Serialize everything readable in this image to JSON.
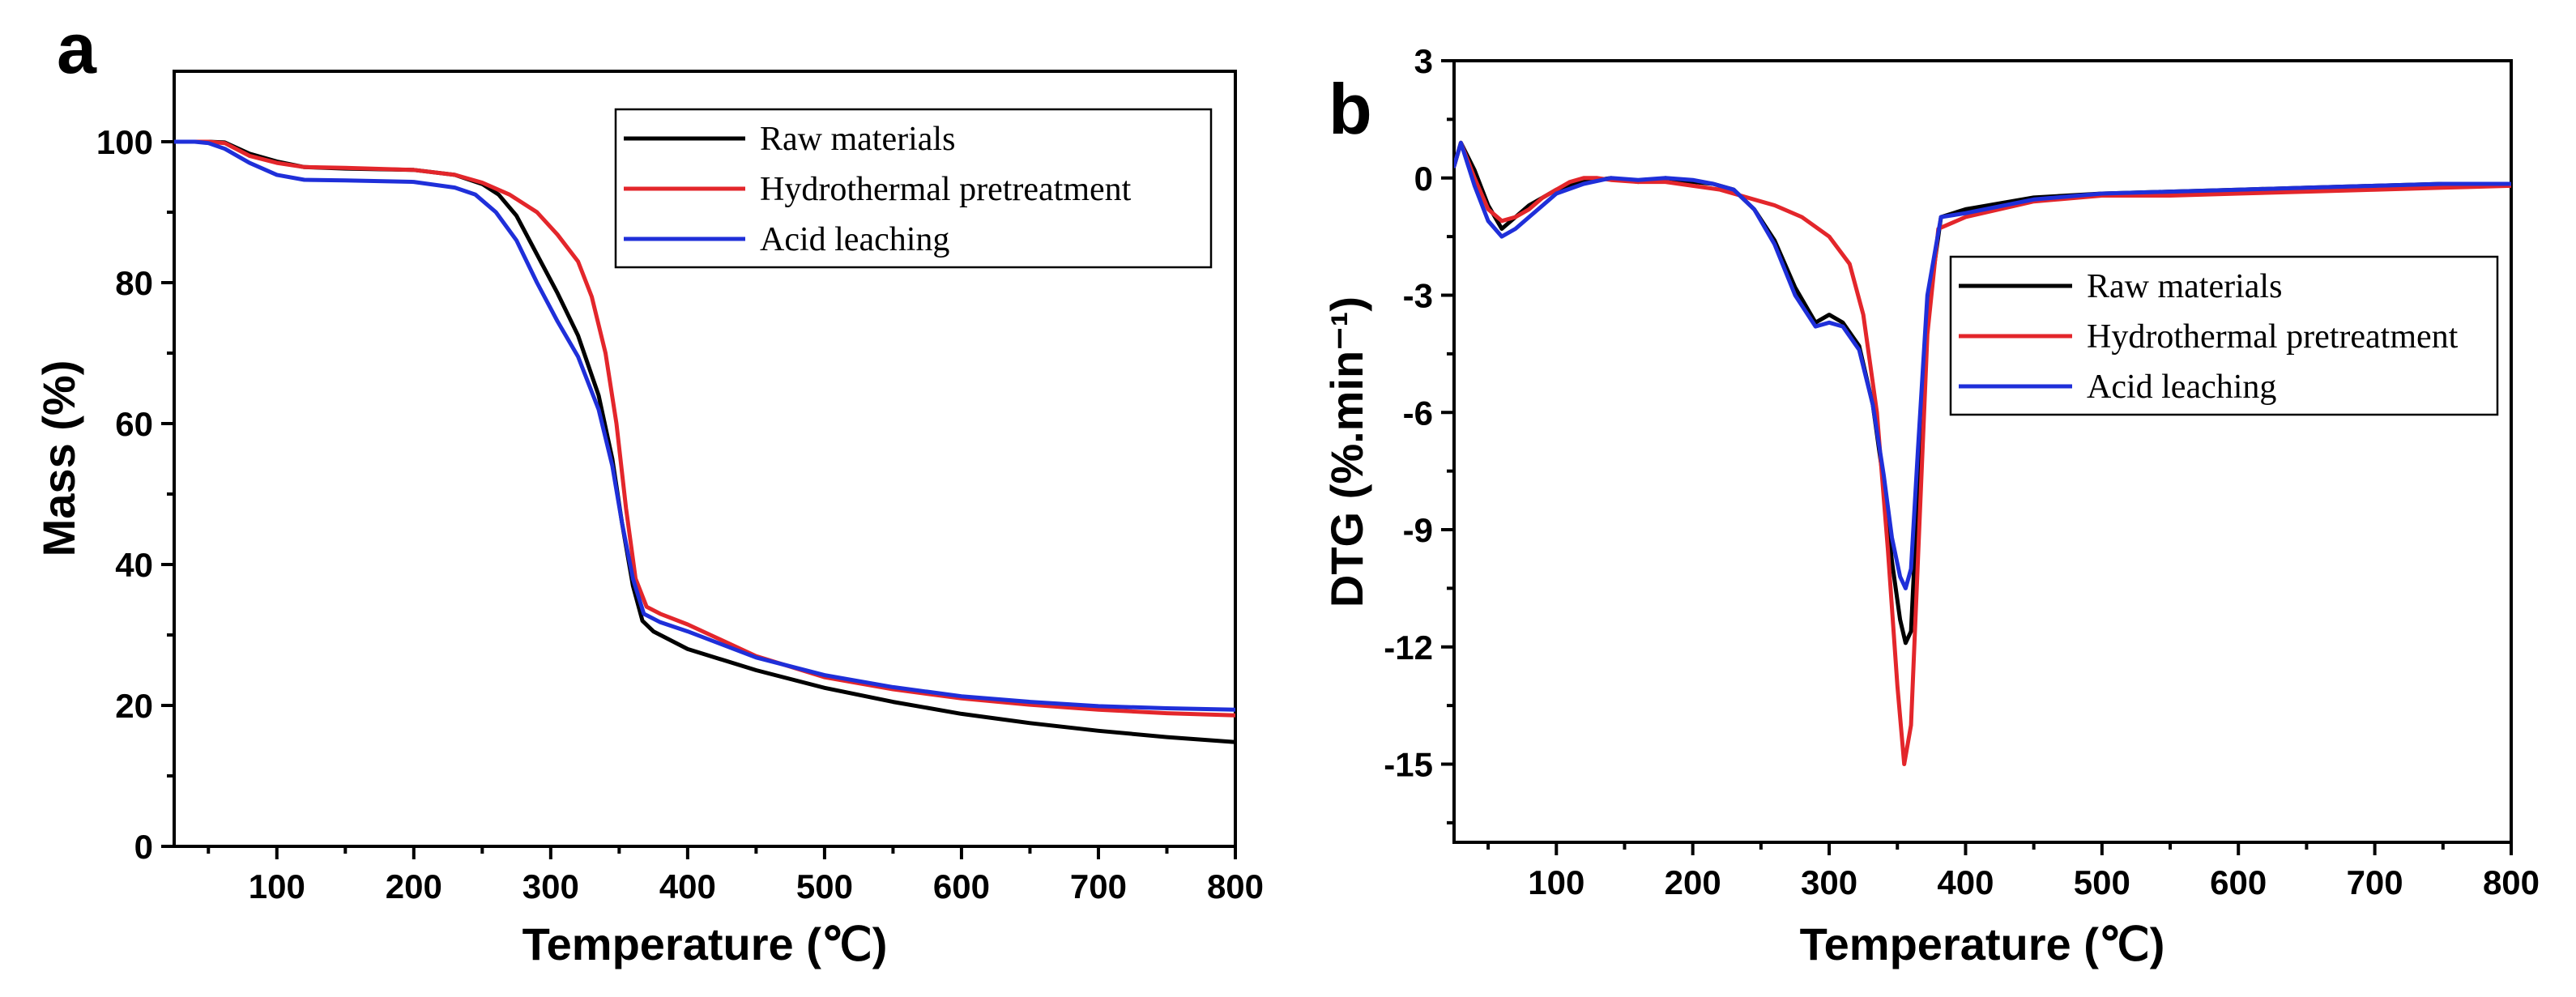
{
  "chart_data": [
    {
      "type": "line",
      "panel": "a",
      "title": "",
      "xlabel": "Temperature (℃)",
      "ylabel": "Mass (%)",
      "xlim": [
        25,
        800
      ],
      "ylim": [
        0,
        110
      ],
      "xticks": [
        100,
        200,
        300,
        400,
        500,
        600,
        700,
        800
      ],
      "yticks": [
        0,
        20,
        40,
        60,
        80,
        100
      ],
      "legend_position": "top-right",
      "series": [
        {
          "name": "Raw materials",
          "color": "#000000",
          "x": [
            25,
            50,
            62,
            80,
            100,
            120,
            150,
            200,
            230,
            250,
            262,
            275,
            290,
            305,
            320,
            335,
            345,
            352,
            360,
            367,
            375,
            400,
            450,
            500,
            550,
            600,
            650,
            700,
            750,
            800
          ],
          "y": [
            100,
            100,
            99.9,
            98.3,
            97.2,
            96.4,
            96.2,
            96.0,
            95.3,
            94.0,
            92.5,
            89.5,
            84.0,
            78.5,
            72.5,
            64.0,
            55.0,
            46.0,
            37.0,
            32.0,
            30.5,
            28.0,
            25.0,
            22.5,
            20.5,
            18.8,
            17.5,
            16.4,
            15.5,
            14.8
          ]
        },
        {
          "name": "Hydrothermal pretreatment",
          "color": "#e3262b",
          "x": [
            25,
            50,
            62,
            80,
            100,
            120,
            150,
            200,
            230,
            250,
            270,
            290,
            305,
            320,
            330,
            340,
            348,
            355,
            362,
            370,
            380,
            400,
            450,
            500,
            550,
            600,
            650,
            700,
            750,
            800
          ],
          "y": [
            100,
            100,
            99.8,
            98.0,
            97.0,
            96.4,
            96.3,
            96.0,
            95.3,
            94.2,
            92.5,
            90.0,
            86.8,
            83.0,
            78.0,
            70.0,
            60.0,
            48.0,
            38.0,
            34.0,
            33.0,
            31.5,
            27.0,
            24.0,
            22.3,
            21.0,
            20.1,
            19.4,
            18.9,
            18.6
          ]
        },
        {
          "name": "Acid leaching",
          "color": "#1f2fd9",
          "x": [
            25,
            40,
            50,
            62,
            80,
            100,
            120,
            150,
            200,
            230,
            245,
            260,
            275,
            290,
            305,
            320,
            335,
            345,
            352,
            360,
            368,
            380,
            400,
            450,
            500,
            550,
            600,
            650,
            700,
            750,
            800
          ],
          "y": [
            100,
            100,
            99.8,
            99.0,
            97.0,
            95.3,
            94.6,
            94.5,
            94.3,
            93.5,
            92.5,
            90.0,
            86.0,
            80.0,
            74.5,
            69.5,
            62.0,
            54.0,
            46.0,
            38.0,
            33.0,
            31.8,
            30.5,
            26.8,
            24.3,
            22.6,
            21.3,
            20.5,
            19.9,
            19.6,
            19.4
          ]
        }
      ]
    },
    {
      "type": "line",
      "panel": "b",
      "title": "",
      "xlabel": "Temperature (℃)",
      "ylabel": "DTG (%.min⁻¹)",
      "xlim": [
        25,
        800
      ],
      "ylim": [
        -17,
        3
      ],
      "xticks": [
        100,
        200,
        300,
        400,
        500,
        600,
        700,
        800
      ],
      "yticks": [
        3,
        0,
        -3,
        -6,
        -9,
        -12,
        -15
      ],
      "legend_position": "center-right",
      "series": [
        {
          "name": "Raw materials",
          "color": "#000000",
          "x": [
            25,
            30,
            40,
            50,
            60,
            70,
            80,
            90,
            100,
            120,
            140,
            160,
            180,
            200,
            215,
            230,
            245,
            260,
            275,
            290,
            300,
            310,
            322,
            332,
            340,
            346,
            352,
            356,
            360,
            365,
            372,
            382,
            400,
            450,
            500,
            550,
            600,
            650,
            700,
            750,
            800
          ],
          "y": [
            0.3,
            0.9,
            0.2,
            -0.7,
            -1.3,
            -1.0,
            -0.7,
            -0.5,
            -0.3,
            -0.1,
            0.0,
            -0.1,
            0.0,
            -0.1,
            -0.15,
            -0.3,
            -0.8,
            -1.6,
            -2.8,
            -3.7,
            -3.5,
            -3.7,
            -4.3,
            -5.8,
            -7.8,
            -9.8,
            -11.3,
            -11.9,
            -11.6,
            -8.0,
            -3.5,
            -1.0,
            -0.8,
            -0.5,
            -0.4,
            -0.35,
            -0.3,
            -0.25,
            -0.2,
            -0.15,
            -0.15
          ]
        },
        {
          "name": "Hydrothermal pretreatment",
          "color": "#e3262b",
          "x": [
            25,
            30,
            40,
            50,
            60,
            70,
            80,
            90,
            100,
            110,
            120,
            130,
            140,
            160,
            180,
            200,
            220,
            240,
            260,
            280,
            300,
            315,
            325,
            335,
            343,
            350,
            355,
            360,
            366,
            372,
            380,
            400,
            450,
            500,
            550,
            600,
            650,
            700,
            750,
            800
          ],
          "y": [
            0.3,
            0.9,
            0.0,
            -0.8,
            -1.1,
            -1.0,
            -0.8,
            -0.5,
            -0.3,
            -0.1,
            0.0,
            0.0,
            -0.05,
            -0.1,
            -0.1,
            -0.2,
            -0.3,
            -0.5,
            -0.7,
            -1.0,
            -1.5,
            -2.2,
            -3.5,
            -6.0,
            -9.5,
            -13.0,
            -15.0,
            -14.0,
            -9.0,
            -4.0,
            -1.3,
            -1.0,
            -0.6,
            -0.45,
            -0.45,
            -0.4,
            -0.35,
            -0.3,
            -0.25,
            -0.2
          ]
        },
        {
          "name": "Acid leaching",
          "color": "#1f2fd9",
          "x": [
            25,
            30,
            40,
            50,
            60,
            70,
            80,
            90,
            100,
            120,
            140,
            160,
            180,
            200,
            215,
            230,
            245,
            260,
            275,
            290,
            300,
            310,
            322,
            332,
            340,
            346,
            352,
            356,
            360,
            365,
            372,
            382,
            400,
            450,
            500,
            550,
            600,
            650,
            700,
            750,
            800
          ],
          "y": [
            0.3,
            0.9,
            -0.2,
            -1.1,
            -1.5,
            -1.3,
            -1.0,
            -0.7,
            -0.4,
            -0.15,
            0.0,
            -0.05,
            0.0,
            -0.05,
            -0.15,
            -0.3,
            -0.8,
            -1.7,
            -3.0,
            -3.8,
            -3.7,
            -3.8,
            -4.4,
            -5.8,
            -7.6,
            -9.2,
            -10.2,
            -10.5,
            -10.0,
            -7.0,
            -3.0,
            -1.0,
            -0.9,
            -0.55,
            -0.4,
            -0.35,
            -0.3,
            -0.25,
            -0.2,
            -0.15,
            -0.15
          ]
        }
      ]
    }
  ]
}
